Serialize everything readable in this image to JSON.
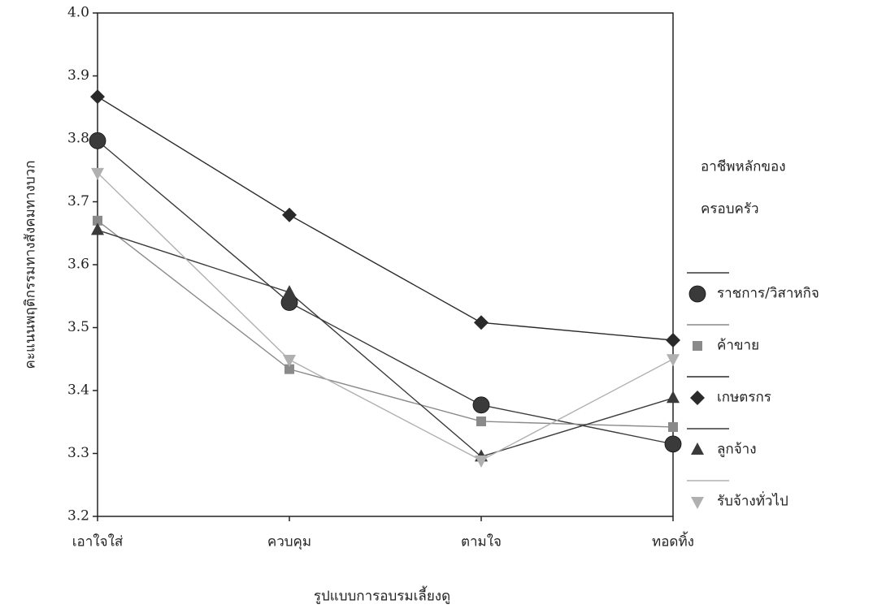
{
  "chart_data": {
    "type": "line",
    "x_label": "รูปแบบการอบรมเลี้ยงดู",
    "y_label": "คะแนนพฤติกรรมทางสังคมทางบวก",
    "legend_title": [
      "อาชีพหลักของ",
      "ครอบครัว"
    ],
    "legend_position": "right",
    "categories": [
      "เอาใจใส่",
      "ควบคุม",
      "ตามใจ",
      "ทอดทิ้ง"
    ],
    "ylim": [
      3.2,
      4.0
    ],
    "yticks": [
      3.2,
      3.3,
      3.4,
      3.5,
      3.6,
      3.7,
      3.8,
      3.9,
      {
        "value": 4,
        "label": "4.0"
      }
    ],
    "series": [
      {
        "name": "ราชการ/วิสาหกิจ",
        "color": "#3a3a3a",
        "marker": "circle",
        "values": [
          3.797,
          3.54,
          3.377,
          3.315
        ]
      },
      {
        "name": "ค้าขาย",
        "color": "#8a8a8a",
        "marker": "square",
        "values": [
          3.67,
          3.434,
          3.351,
          3.342
        ]
      },
      {
        "name": "เกษตรกร",
        "color": "#2a2a2a",
        "marker": "diamond",
        "values": [
          3.867,
          3.679,
          3.508,
          3.48
        ]
      },
      {
        "name": "ลูกจ้าง",
        "color": "#3a3a3a",
        "marker": "triangle",
        "values": [
          3.655,
          3.556,
          3.295,
          3.388
        ]
      },
      {
        "name": "รับจ้างทั่วไป",
        "color": "#b0b0b0",
        "marker": "triangle-down",
        "values": [
          3.746,
          3.449,
          3.289,
          3.45
        ]
      }
    ]
  }
}
